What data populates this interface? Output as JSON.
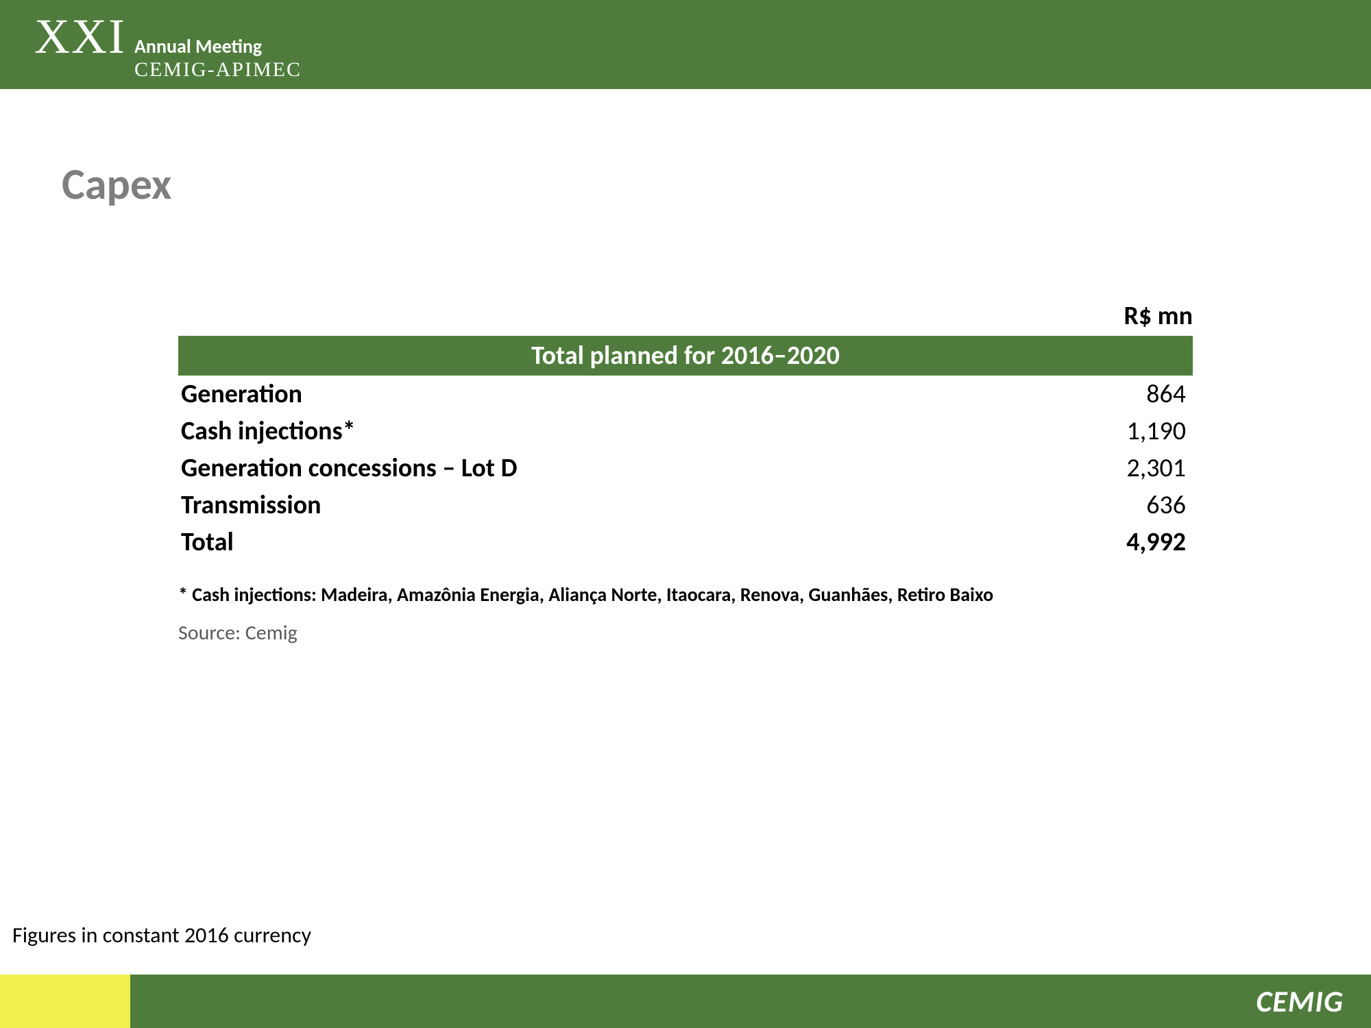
{
  "header": {
    "roman": "XXI",
    "meeting": "Annual Meeting",
    "org": "CEMIG-APIMEC"
  },
  "title": "Capex",
  "currency_label": "R$ mn",
  "table": {
    "header": "Total planned for 2016–2020",
    "rows": [
      {
        "label": "Generation",
        "value": "864"
      },
      {
        "label": "Cash injections*",
        "value": "1,190"
      },
      {
        "label": "Generation concessions – Lot D",
        "value": "2,301"
      },
      {
        "label": "Transmission",
        "value": "636"
      }
    ],
    "total": {
      "label": "Total",
      "value": "4,992"
    }
  },
  "footnote": "* Cash injections: Madeira, Amazônia Energia, Aliança Norte, Itaocara, Renova, Guanhães, Retiro Baixo",
  "source": "Source: Cemig",
  "bottom_note": "Figures in constant 2016 currency",
  "footer_logo": "CEMIG",
  "colors": {
    "header_green": "#4f7c3c",
    "footer_yellow": "#f0f050",
    "title_gray": "#7f7f7f"
  }
}
